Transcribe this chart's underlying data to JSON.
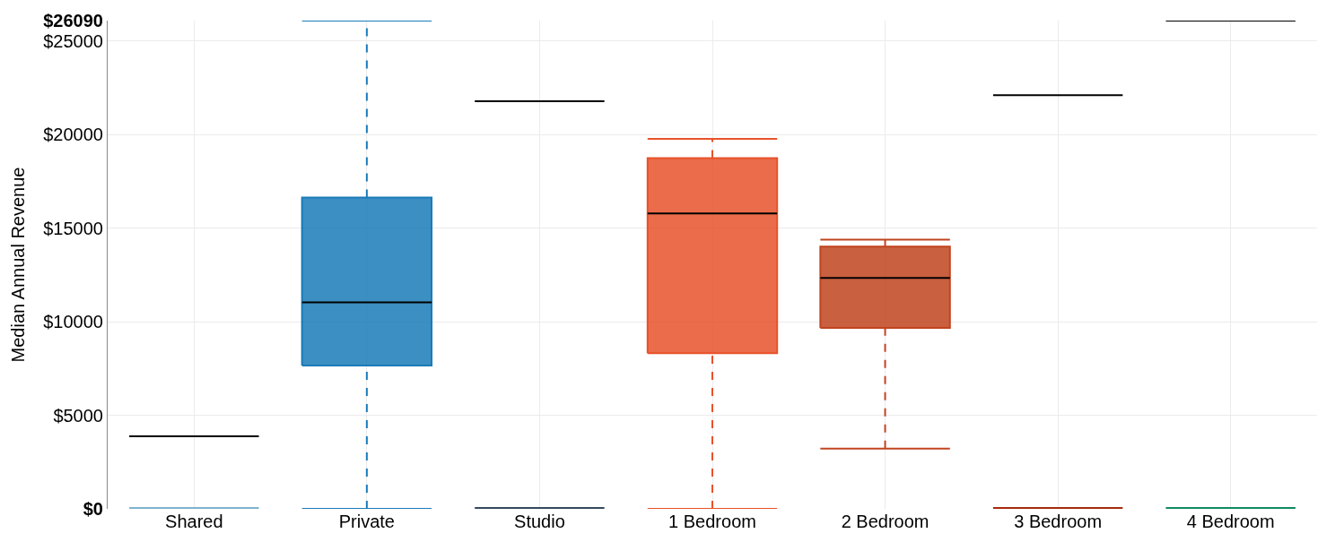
{
  "chart_data": {
    "type": "box",
    "ylabel": "Median Annual Revenue",
    "categories": [
      "Shared",
      "Private",
      "Studio",
      "1 Bedroom",
      "2 Bedroom",
      "3 Bedroom",
      "4 Bedroom"
    ],
    "colors": [
      "#7fb3d0",
      "#1a7bb9",
      "#34495e",
      "#e8522a",
      "#c0441f",
      "#a62a0c",
      "#0f8a5f"
    ],
    "boxes": [
      {
        "low": 0,
        "q1": 0,
        "median": 3880,
        "q3": 0,
        "high": 0
      },
      {
        "low": 0,
        "q1": 7660,
        "median": 11030,
        "q3": 16640,
        "high": 26090
      },
      {
        "low": 0,
        "q1": 0,
        "median": 21780,
        "q3": 0,
        "high": 0
      },
      {
        "low": 0,
        "q1": 8320,
        "median": 15790,
        "q3": 18740,
        "high": 19770
      },
      {
        "low": 3220,
        "q1": 9670,
        "median": 12340,
        "q3": 14020,
        "high": 14390
      },
      {
        "low": 0,
        "q1": 0,
        "median": 22100,
        "q3": 0,
        "high": 0
      },
      {
        "low": 0,
        "q1": 0,
        "median": 26090,
        "q3": 0,
        "high": 0
      }
    ],
    "ylim": [
      0,
      26090
    ],
    "yticks": [
      {
        "value": 0,
        "label": "$0"
      },
      {
        "value": 5000,
        "label": "$5000"
      },
      {
        "value": 10000,
        "label": "$10000"
      },
      {
        "value": 15000,
        "label": "$15000"
      },
      {
        "value": 20000,
        "label": "$20000"
      },
      {
        "value": 25000,
        "label": "$25000"
      },
      {
        "value": 26090,
        "label": "$26090"
      }
    ],
    "grid": true
  }
}
